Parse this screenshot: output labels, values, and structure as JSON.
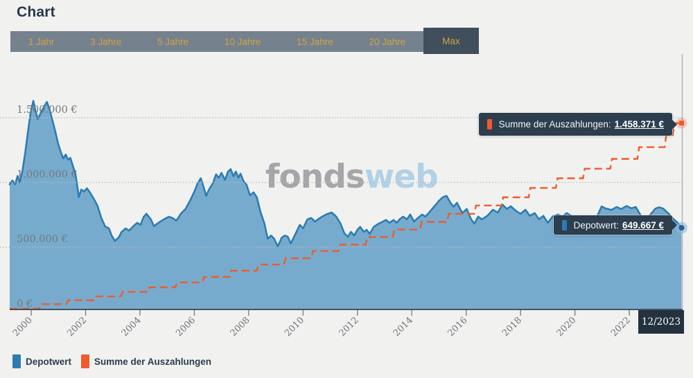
{
  "header": {
    "title": "Chart"
  },
  "tabs": {
    "items": [
      {
        "label": "1 Jahr",
        "active": false
      },
      {
        "label": "3 Jahre",
        "active": false
      },
      {
        "label": "5 Jahre",
        "active": false
      },
      {
        "label": "10 Jahre",
        "active": false
      },
      {
        "label": "15 Jahre",
        "active": false
      },
      {
        "label": "20 Jahre",
        "active": false
      },
      {
        "label": "Max",
        "active": true
      }
    ],
    "text_color": "#cfa43e",
    "bar_color": "#76818e",
    "active_color": "#414e5c"
  },
  "watermark": {
    "fonds": "fonds",
    "web": "web"
  },
  "chart_data": {
    "type": "area",
    "title": "",
    "xlabel": "",
    "ylabel": "",
    "x_axis": {
      "range": [
        1999.21,
        2023.92
      ],
      "ticks": [
        2000,
        2002,
        2004,
        2006,
        2008,
        2010,
        2012,
        2014,
        2016,
        2018,
        2020,
        2022
      ],
      "current_label": "12/2023"
    },
    "y_axis": {
      "ylim": [
        0,
        1634000
      ],
      "ticks": [
        {
          "v": 0,
          "label": "0 €"
        },
        {
          "v": 500000,
          "label": "500.000 €"
        },
        {
          "v": 1000000,
          "label": "1.000.000 €"
        },
        {
          "v": 1500000,
          "label": "1.500.000 €"
        }
      ],
      "grid": "dotted"
    },
    "series": [
      {
        "name": "Depotwert",
        "type": "area",
        "line_color": "#2d7cb1",
        "fill_color": "#77abce",
        "final_value": 649667,
        "final_label": "649.667 €",
        "points": [
          [
            1999.21,
            985000
          ],
          [
            1999.31,
            1015000
          ],
          [
            1999.41,
            985000
          ],
          [
            1999.5,
            1050000
          ],
          [
            1999.58,
            1000000
          ],
          [
            1999.68,
            1090000
          ],
          [
            1999.78,
            1230000
          ],
          [
            1999.88,
            1390000
          ],
          [
            1999.98,
            1540000
          ],
          [
            2000.08,
            1630000
          ],
          [
            2000.16,
            1550000
          ],
          [
            2000.24,
            1490000
          ],
          [
            2000.34,
            1530000
          ],
          [
            2000.45,
            1575000
          ],
          [
            2000.58,
            1622000
          ],
          [
            2000.68,
            1560000
          ],
          [
            2000.78,
            1480000
          ],
          [
            2000.88,
            1400000
          ],
          [
            2000.99,
            1300000
          ],
          [
            2001.1,
            1230000
          ],
          [
            2001.18,
            1185000
          ],
          [
            2001.27,
            1215000
          ],
          [
            2001.36,
            1175000
          ],
          [
            2001.44,
            1190000
          ],
          [
            2001.53,
            1130000
          ],
          [
            2001.63,
            1065000
          ],
          [
            2001.7,
            965000
          ],
          [
            2001.75,
            885000
          ],
          [
            2001.84,
            945000
          ],
          [
            2001.95,
            930000
          ],
          [
            2002.05,
            955000
          ],
          [
            2002.16,
            923000
          ],
          [
            2002.3,
            875000
          ],
          [
            2002.44,
            820000
          ],
          [
            2002.58,
            725000
          ],
          [
            2002.72,
            660000
          ],
          [
            2002.86,
            645000
          ],
          [
            2002.96,
            590000
          ],
          [
            2003.08,
            548000
          ],
          [
            2003.22,
            575000
          ],
          [
            2003.33,
            618000
          ],
          [
            2003.48,
            645000
          ],
          [
            2003.6,
            628000
          ],
          [
            2003.75,
            660000
          ],
          [
            2003.9,
            688000
          ],
          [
            2004.02,
            672000
          ],
          [
            2004.14,
            735000
          ],
          [
            2004.24,
            758000
          ],
          [
            2004.4,
            715000
          ],
          [
            2004.52,
            662000
          ],
          [
            2004.68,
            688000
          ],
          [
            2004.88,
            715000
          ],
          [
            2005.06,
            735000
          ],
          [
            2005.2,
            725000
          ],
          [
            2005.34,
            705000
          ],
          [
            2005.52,
            762000
          ],
          [
            2005.68,
            795000
          ],
          [
            2005.84,
            858000
          ],
          [
            2006.0,
            928000
          ],
          [
            2006.12,
            992000
          ],
          [
            2006.24,
            1032000
          ],
          [
            2006.34,
            966000
          ],
          [
            2006.44,
            896000
          ],
          [
            2006.55,
            950000
          ],
          [
            2006.68,
            992000
          ],
          [
            2006.8,
            1062000
          ],
          [
            2006.9,
            1036000
          ],
          [
            2007.0,
            1074000
          ],
          [
            2007.13,
            1020000
          ],
          [
            2007.24,
            1084000
          ],
          [
            2007.34,
            1102000
          ],
          [
            2007.44,
            1047000
          ],
          [
            2007.53,
            1084000
          ],
          [
            2007.62,
            1036000
          ],
          [
            2007.7,
            1068000
          ],
          [
            2007.8,
            1014000
          ],
          [
            2007.92,
            982000
          ],
          [
            2008.05,
            900000
          ],
          [
            2008.18,
            923000
          ],
          [
            2008.3,
            885000
          ],
          [
            2008.44,
            768000
          ],
          [
            2008.58,
            682000
          ],
          [
            2008.7,
            564000
          ],
          [
            2008.82,
            590000
          ],
          [
            2008.94,
            564000
          ],
          [
            2009.07,
            506000
          ],
          [
            2009.22,
            575000
          ],
          [
            2009.33,
            590000
          ],
          [
            2009.44,
            580000
          ],
          [
            2009.55,
            528000
          ],
          [
            2009.72,
            602000
          ],
          [
            2009.88,
            672000
          ],
          [
            2010.0,
            645000
          ],
          [
            2010.16,
            715000
          ],
          [
            2010.3,
            725000
          ],
          [
            2010.44,
            698000
          ],
          [
            2010.62,
            725000
          ],
          [
            2010.84,
            752000
          ],
          [
            2011.05,
            768000
          ],
          [
            2011.22,
            736000
          ],
          [
            2011.38,
            682000
          ],
          [
            2011.52,
            607000
          ],
          [
            2011.65,
            580000
          ],
          [
            2011.76,
            618000
          ],
          [
            2011.88,
            590000
          ],
          [
            2012.0,
            634000
          ],
          [
            2012.1,
            656000
          ],
          [
            2012.24,
            618000
          ],
          [
            2012.34,
            634000
          ],
          [
            2012.45,
            602000
          ],
          [
            2012.6,
            656000
          ],
          [
            2012.78,
            682000
          ],
          [
            2012.94,
            698000
          ],
          [
            2013.05,
            710000
          ],
          [
            2013.18,
            688000
          ],
          [
            2013.33,
            710000
          ],
          [
            2013.44,
            688000
          ],
          [
            2013.55,
            715000
          ],
          [
            2013.68,
            736000
          ],
          [
            2013.82,
            715000
          ],
          [
            2013.94,
            752000
          ],
          [
            2014.08,
            698000
          ],
          [
            2014.22,
            725000
          ],
          [
            2014.38,
            752000
          ],
          [
            2014.5,
            736000
          ],
          [
            2014.64,
            768000
          ],
          [
            2014.83,
            815000
          ],
          [
            2015.0,
            858000
          ],
          [
            2015.14,
            886000
          ],
          [
            2015.28,
            896000
          ],
          [
            2015.42,
            843000
          ],
          [
            2015.54,
            812000
          ],
          [
            2015.66,
            843000
          ],
          [
            2015.86,
            763000
          ],
          [
            2016.02,
            795000
          ],
          [
            2016.18,
            715000
          ],
          [
            2016.3,
            682000
          ],
          [
            2016.44,
            736000
          ],
          [
            2016.58,
            715000
          ],
          [
            2016.78,
            742000
          ],
          [
            2016.98,
            789000
          ],
          [
            2017.16,
            768000
          ],
          [
            2017.34,
            828000
          ],
          [
            2017.5,
            795000
          ],
          [
            2017.64,
            816000
          ],
          [
            2017.83,
            780000
          ],
          [
            2018.0,
            758000
          ],
          [
            2018.18,
            789000
          ],
          [
            2018.34,
            742000
          ],
          [
            2018.52,
            763000
          ],
          [
            2018.68,
            715000
          ],
          [
            2018.84,
            742000
          ],
          [
            2019.0,
            688000
          ],
          [
            2019.18,
            736000
          ],
          [
            2019.38,
            752000
          ],
          [
            2019.54,
            736000
          ],
          [
            2019.7,
            763000
          ],
          [
            2019.88,
            740000
          ],
          [
            2020.08,
            695000
          ],
          [
            2020.22,
            605000
          ],
          [
            2020.38,
            660000
          ],
          [
            2020.58,
            688000
          ],
          [
            2020.78,
            718000
          ],
          [
            2020.98,
            815000
          ],
          [
            2021.14,
            798000
          ],
          [
            2021.34,
            788000
          ],
          [
            2021.54,
            810000
          ],
          [
            2021.7,
            794000
          ],
          [
            2021.9,
            818000
          ],
          [
            2022.08,
            800000
          ],
          [
            2022.24,
            810000
          ],
          [
            2022.44,
            738000
          ],
          [
            2022.6,
            700000
          ],
          [
            2022.8,
            758000
          ],
          [
            2022.96,
            798000
          ],
          [
            2023.1,
            808000
          ],
          [
            2023.25,
            798000
          ],
          [
            2023.45,
            758000
          ],
          [
            2023.62,
            718000
          ],
          [
            2023.78,
            688000
          ],
          [
            2023.92,
            649667
          ]
        ]
      },
      {
        "name": "Summe der Auszahlungen",
        "type": "step-dashed",
        "line_color": "#ef5b2b",
        "final_value": 1458371,
        "final_label": "1.458.371 €",
        "points": [
          [
            1999.21,
            25000
          ],
          [
            2000.3,
            25000
          ],
          [
            2000.36,
            60000
          ],
          [
            2001.3,
            60000
          ],
          [
            2001.36,
            90000
          ],
          [
            2002.3,
            90000
          ],
          [
            2002.36,
            120000
          ],
          [
            2003.3,
            120000
          ],
          [
            2003.36,
            155000
          ],
          [
            2004.3,
            155000
          ],
          [
            2004.36,
            190000
          ],
          [
            2005.3,
            190000
          ],
          [
            2005.36,
            228000
          ],
          [
            2006.3,
            228000
          ],
          [
            2006.36,
            270000
          ],
          [
            2007.3,
            270000
          ],
          [
            2007.36,
            318000
          ],
          [
            2008.3,
            318000
          ],
          [
            2008.36,
            366000
          ],
          [
            2009.3,
            366000
          ],
          [
            2009.36,
            414000
          ],
          [
            2010.3,
            414000
          ],
          [
            2010.36,
            470000
          ],
          [
            2011.3,
            470000
          ],
          [
            2011.36,
            520000
          ],
          [
            2012.3,
            520000
          ],
          [
            2012.36,
            578000
          ],
          [
            2013.3,
            578000
          ],
          [
            2013.36,
            636000
          ],
          [
            2014.3,
            636000
          ],
          [
            2014.36,
            695000
          ],
          [
            2015.3,
            695000
          ],
          [
            2015.36,
            758000
          ],
          [
            2016.3,
            758000
          ],
          [
            2016.36,
            822000
          ],
          [
            2017.3,
            822000
          ],
          [
            2017.36,
            885000
          ],
          [
            2018.3,
            885000
          ],
          [
            2018.36,
            958000
          ],
          [
            2019.3,
            958000
          ],
          [
            2019.36,
            1032000
          ],
          [
            2020.3,
            1032000
          ],
          [
            2020.36,
            1106000
          ],
          [
            2021.3,
            1106000
          ],
          [
            2021.36,
            1182000
          ],
          [
            2022.3,
            1182000
          ],
          [
            2022.36,
            1272000
          ],
          [
            2023.3,
            1272000
          ],
          [
            2023.36,
            1365000
          ],
          [
            2023.6,
            1365000
          ],
          [
            2023.66,
            1458371
          ],
          [
            2023.92,
            1458371
          ]
        ]
      }
    ],
    "legend_position": "bottom-left"
  },
  "tooltips": [
    {
      "label": "Summe der Auszahlungen:",
      "value": "1.458.371 €",
      "swatch_color": "#ef5b2b"
    },
    {
      "label": "Depotwert:",
      "value": "649.667 €",
      "swatch_color": "#2d7cb1"
    }
  ],
  "legend": {
    "items": [
      {
        "label": "Depotwert",
        "color": "#2d7cb1"
      },
      {
        "label": "Summe der Auszahlungen",
        "color": "#ef5b2b"
      }
    ]
  },
  "colors": {
    "background": "#f1f2f0",
    "gridline": "#b9bcbb",
    "axis_line": "#46525e",
    "tick": "#79828c",
    "tick_label": "#6f7478",
    "right_boundary": "#9aa0a6",
    "tooltip_bg": "#2d3e4f",
    "date_box_bg": "#243240",
    "watermark_gray": "#97999d",
    "watermark_blue": "#a8cce6"
  }
}
